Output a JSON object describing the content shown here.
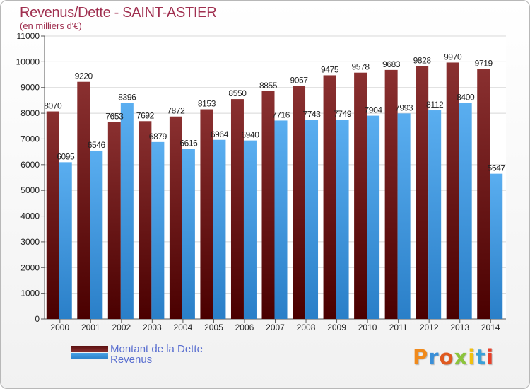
{
  "header": {
    "title": "Revenus/Dette - SAINT-ASTIER",
    "subtitle": "(en milliers d'€)"
  },
  "legend": {
    "items": [
      {
        "label": "Montant de la Dette",
        "color": "#7a2020"
      },
      {
        "label": "Revenus",
        "color": "#4aa3e6"
      }
    ]
  },
  "logo": {
    "text": "Proxiti"
  },
  "colors": {
    "debt_top": "#8a3030",
    "debt_bottom": "#4a0000",
    "rev_top": "#5aaef0",
    "rev_bottom": "#2a7fc8",
    "legend_label": "#5a6fd0",
    "title": "#a03050"
  },
  "chart_data": {
    "type": "bar",
    "title": "Revenus/Dette - SAINT-ASTIER",
    "subtitle": "(en milliers d'€)",
    "xlabel": "",
    "ylabel": "",
    "categories": [
      "2000",
      "2001",
      "2002",
      "2003",
      "2004",
      "2005",
      "2006",
      "2007",
      "2008",
      "2009",
      "2010",
      "2011",
      "2012",
      "2013",
      "2014"
    ],
    "series": [
      {
        "name": "Montant de la Dette",
        "values": [
          8070,
          9220,
          7653,
          7692,
          7872,
          8153,
          8550,
          8855,
          9057,
          9475,
          9578,
          9683,
          9828,
          9970,
          9719
        ]
      },
      {
        "name": "Revenus",
        "values": [
          6095,
          6546,
          8396,
          6879,
          6616,
          6964,
          6940,
          7716,
          7743,
          7749,
          7904,
          7993,
          8112,
          8400,
          5647
        ]
      }
    ],
    "y_ticks": [
      0,
      1000,
      2000,
      3000,
      4000,
      5000,
      6000,
      7000,
      8000,
      9000,
      10000,
      11000
    ],
    "ylim": [
      0,
      11000
    ],
    "grid": true,
    "legend_position": "bottom-left"
  }
}
